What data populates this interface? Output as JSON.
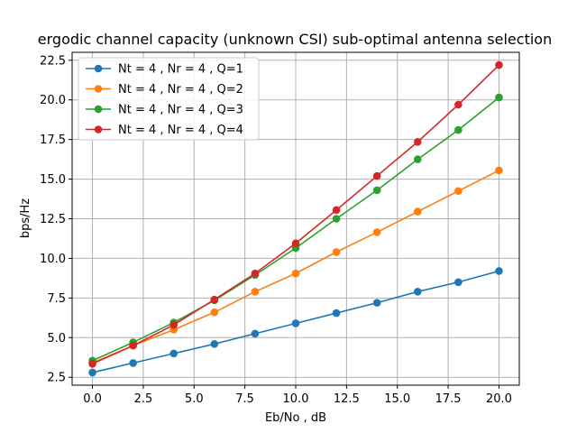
{
  "chart_data": {
    "type": "line",
    "title": "ergodic channel capacity (unknown CSI) sub-optimal antenna selection",
    "xlabel": "Eb/No , dB",
    "ylabel": "bps/Hz",
    "xlim": [
      -1,
      21
    ],
    "ylim": [
      2.0,
      23.0
    ],
    "xticks": [
      "0.0",
      "2.5",
      "5.0",
      "7.5",
      "10.0",
      "12.5",
      "15.0",
      "17.5",
      "20.0"
    ],
    "yticks": [
      "2.5",
      "5.0",
      "7.5",
      "10.0",
      "12.5",
      "15.0",
      "17.5",
      "20.0",
      "22.5"
    ],
    "grid": true,
    "legend_position": "top-left",
    "x": [
      0,
      2,
      4,
      6,
      8,
      10,
      12,
      14,
      16,
      18,
      20
    ],
    "series": [
      {
        "name": "Nt = 4 , Nr = 4 , Q=1",
        "color": "#1f77b4",
        "values": [
          2.8,
          3.4,
          4.0,
          4.6,
          5.25,
          5.9,
          6.55,
          7.2,
          7.9,
          8.5,
          9.2
        ]
      },
      {
        "name": "Nt = 4 , Nr = 4 , Q=2",
        "color": "#ff7f0e",
        "values": [
          3.4,
          4.5,
          5.5,
          6.6,
          7.9,
          9.05,
          10.4,
          11.65,
          12.95,
          14.25,
          15.55
        ]
      },
      {
        "name": "Nt = 4 , Nr = 4 , Q=3",
        "color": "#2ca02c",
        "values": [
          3.55,
          4.7,
          5.95,
          7.35,
          8.95,
          10.65,
          12.5,
          14.3,
          16.25,
          18.1,
          20.15
        ]
      },
      {
        "name": "Nt = 4 , Nr = 4 , Q=4",
        "color": "#d62728",
        "values": [
          3.35,
          4.5,
          5.8,
          7.4,
          9.05,
          10.95,
          13.05,
          15.2,
          17.35,
          19.7,
          22.2
        ]
      }
    ]
  }
}
